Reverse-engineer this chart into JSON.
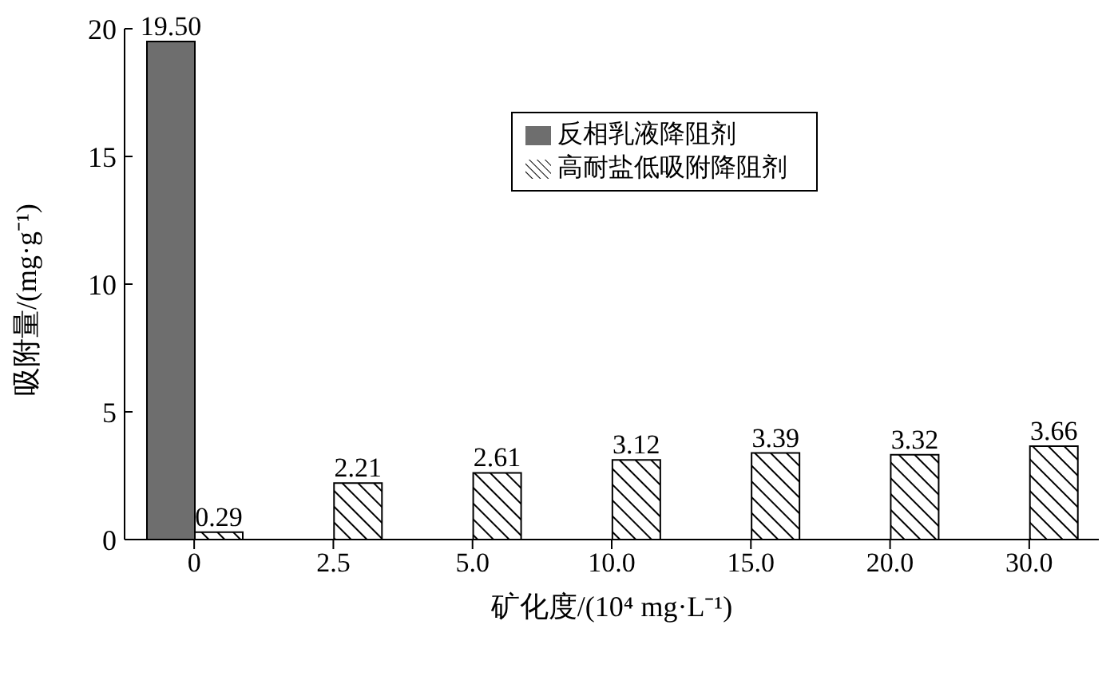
{
  "chart_data": {
    "type": "bar",
    "categories": [
      "0",
      "2.5",
      "5.0",
      "10.0",
      "15.0",
      "20.0",
      "30.0"
    ],
    "xlabel": "矿化度/(10⁴ mg·L⁻¹)",
    "ylabel": "吸附量/(mg·g⁻¹)",
    "ylim": [
      0,
      20
    ],
    "yticks": [
      0,
      5,
      10,
      15,
      20
    ],
    "grid": false,
    "legend": "top right",
    "series": [
      {
        "name": "反相乳液降阻剂",
        "color": "#6e6e6e",
        "values": [
          19.5,
          null,
          null,
          null,
          null,
          null,
          null
        ],
        "value_labels": [
          "19.50",
          null,
          null,
          null,
          null,
          null,
          null
        ]
      },
      {
        "name": "高耐盐低吸附降阻剂",
        "color": "#000000",
        "values": [
          0.29,
          2.21,
          2.61,
          3.12,
          3.39,
          3.32,
          3.66
        ],
        "value_labels": [
          "0.29",
          "2.21",
          "2.61",
          "3.12",
          "3.39",
          "3.32",
          "3.66"
        ]
      }
    ]
  }
}
